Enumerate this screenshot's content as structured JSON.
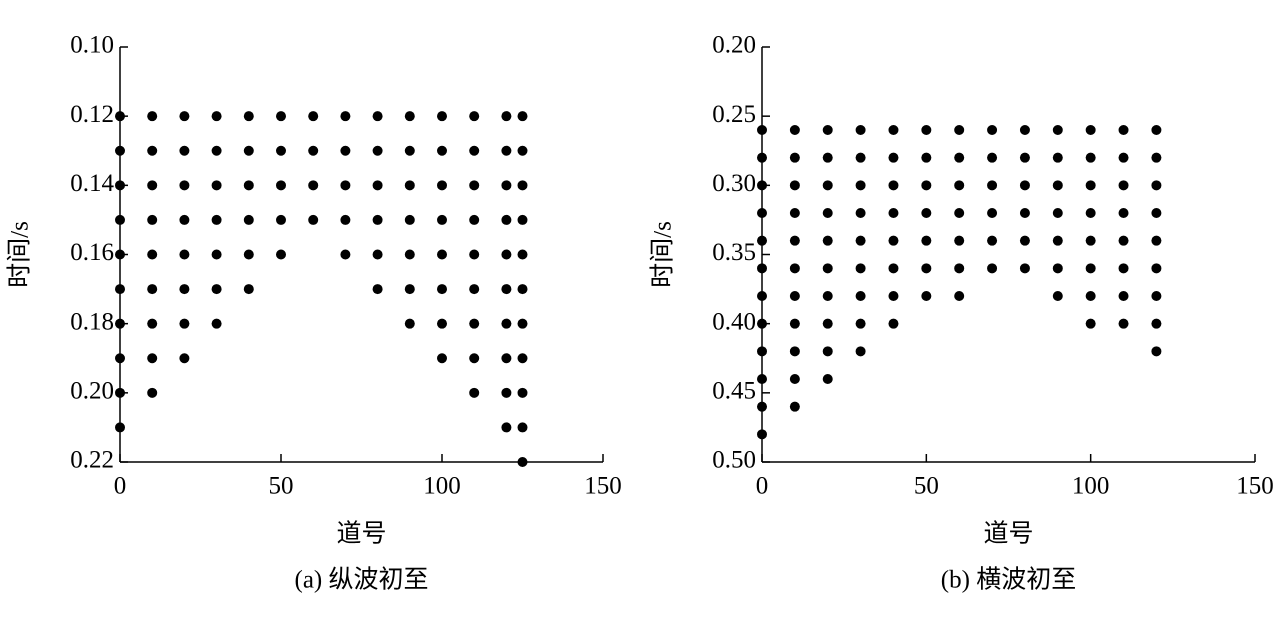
{
  "chart_data": [
    {
      "type": "scatter",
      "title": "(a) 纵波初至",
      "x_label": "道号",
      "y_label": "时间/s",
      "color": "#000000",
      "y_inverted": true,
      "xlim": [
        0,
        150
      ],
      "xticks": [
        0,
        50,
        100,
        150
      ],
      "ylim": [
        0.1,
        0.22
      ],
      "yticks": [
        {
          "value": 0.1,
          "label": "0.10"
        },
        0.12,
        0.14,
        0.16,
        0.18,
        {
          "value": 0.2,
          "label": "0.20"
        },
        0.22
      ],
      "x": [
        0,
        0,
        0,
        0,
        0,
        0,
        0,
        0,
        0,
        0,
        10,
        10,
        10,
        10,
        10,
        10,
        10,
        10,
        10,
        20,
        20,
        20,
        20,
        20,
        20,
        20,
        20,
        30,
        30,
        30,
        30,
        30,
        30,
        30,
        40,
        40,
        40,
        40,
        40,
        40,
        50,
        50,
        50,
        50,
        50,
        60,
        60,
        60,
        60,
        70,
        70,
        70,
        70,
        70,
        80,
        80,
        80,
        80,
        80,
        80,
        90,
        90,
        90,
        90,
        90,
        90,
        90,
        100,
        100,
        100,
        100,
        100,
        100,
        100,
        100,
        110,
        110,
        110,
        110,
        110,
        110,
        110,
        110,
        110,
        120,
        120,
        120,
        120,
        120,
        120,
        120,
        120,
        120,
        120,
        125,
        125,
        125,
        125,
        125,
        125,
        125,
        125,
        125,
        125,
        125
      ],
      "y": [
        0.12,
        0.13,
        0.14,
        0.15,
        0.16,
        0.17,
        0.18,
        0.19,
        0.2,
        0.21,
        0.12,
        0.13,
        0.14,
        0.15,
        0.16,
        0.17,
        0.18,
        0.19,
        0.2,
        0.12,
        0.13,
        0.14,
        0.15,
        0.16,
        0.17,
        0.18,
        0.19,
        0.12,
        0.13,
        0.14,
        0.15,
        0.16,
        0.17,
        0.18,
        0.12,
        0.13,
        0.14,
        0.15,
        0.16,
        0.17,
        0.12,
        0.13,
        0.14,
        0.15,
        0.16,
        0.12,
        0.13,
        0.14,
        0.15,
        0.12,
        0.13,
        0.14,
        0.15,
        0.16,
        0.12,
        0.13,
        0.14,
        0.15,
        0.16,
        0.17,
        0.12,
        0.13,
        0.14,
        0.15,
        0.16,
        0.17,
        0.18,
        0.12,
        0.13,
        0.14,
        0.15,
        0.16,
        0.17,
        0.18,
        0.19,
        0.12,
        0.13,
        0.14,
        0.15,
        0.16,
        0.17,
        0.18,
        0.19,
        0.2,
        0.12,
        0.13,
        0.14,
        0.15,
        0.16,
        0.17,
        0.18,
        0.19,
        0.2,
        0.21,
        0.12,
        0.13,
        0.14,
        0.15,
        0.16,
        0.17,
        0.18,
        0.19,
        0.2,
        0.21,
        0.22
      ]
    },
    {
      "type": "scatter",
      "title": "(b) 横波初至",
      "x_label": "道号",
      "y_label": "时间/s",
      "color": "#000000",
      "y_inverted": true,
      "xlim": [
        0,
        150
      ],
      "xticks": [
        0,
        50,
        100,
        150
      ],
      "ylim": [
        0.2,
        0.5
      ],
      "yticks": [
        {
          "value": 0.2,
          "label": "0.20"
        },
        0.25,
        {
          "value": 0.3,
          "label": "0.30"
        },
        0.35,
        {
          "value": 0.4,
          "label": "0.40"
        },
        0.45,
        {
          "value": 0.5,
          "label": "0.50"
        }
      ],
      "x": [
        0,
        0,
        0,
        0,
        0,
        0,
        0,
        0,
        0,
        0,
        0,
        0,
        10,
        10,
        10,
        10,
        10,
        10,
        10,
        10,
        10,
        10,
        10,
        20,
        20,
        20,
        20,
        20,
        20,
        20,
        20,
        20,
        20,
        30,
        30,
        30,
        30,
        30,
        30,
        30,
        30,
        30,
        40,
        40,
        40,
        40,
        40,
        40,
        40,
        40,
        50,
        50,
        50,
        50,
        50,
        50,
        50,
        60,
        60,
        60,
        60,
        60,
        60,
        60,
        70,
        70,
        70,
        70,
        70,
        70,
        80,
        80,
        80,
        80,
        80,
        80,
        90,
        90,
        90,
        90,
        90,
        90,
        90,
        100,
        100,
        100,
        100,
        100,
        100,
        100,
        100,
        110,
        110,
        110,
        110,
        110,
        110,
        110,
        110,
        120,
        120,
        120,
        120,
        120,
        120,
        120,
        120,
        120
      ],
      "y": [
        0.26,
        0.28,
        0.3,
        0.32,
        0.34,
        0.36,
        0.38,
        0.4,
        0.42,
        0.44,
        0.46,
        0.48,
        0.26,
        0.28,
        0.3,
        0.32,
        0.34,
        0.36,
        0.38,
        0.4,
        0.42,
        0.44,
        0.46,
        0.26,
        0.28,
        0.3,
        0.32,
        0.34,
        0.36,
        0.38,
        0.4,
        0.42,
        0.44,
        0.26,
        0.28,
        0.3,
        0.32,
        0.34,
        0.36,
        0.38,
        0.4,
        0.42,
        0.26,
        0.28,
        0.3,
        0.32,
        0.34,
        0.36,
        0.38,
        0.4,
        0.26,
        0.28,
        0.3,
        0.32,
        0.34,
        0.36,
        0.38,
        0.26,
        0.28,
        0.3,
        0.32,
        0.34,
        0.36,
        0.38,
        0.26,
        0.28,
        0.3,
        0.32,
        0.34,
        0.36,
        0.26,
        0.28,
        0.3,
        0.32,
        0.34,
        0.36,
        0.26,
        0.28,
        0.3,
        0.32,
        0.34,
        0.36,
        0.38,
        0.26,
        0.28,
        0.3,
        0.32,
        0.34,
        0.36,
        0.38,
        0.4,
        0.26,
        0.28,
        0.3,
        0.32,
        0.34,
        0.36,
        0.38,
        0.4,
        0.26,
        0.28,
        0.3,
        0.32,
        0.34,
        0.36,
        0.38,
        0.4,
        0.42
      ]
    }
  ]
}
